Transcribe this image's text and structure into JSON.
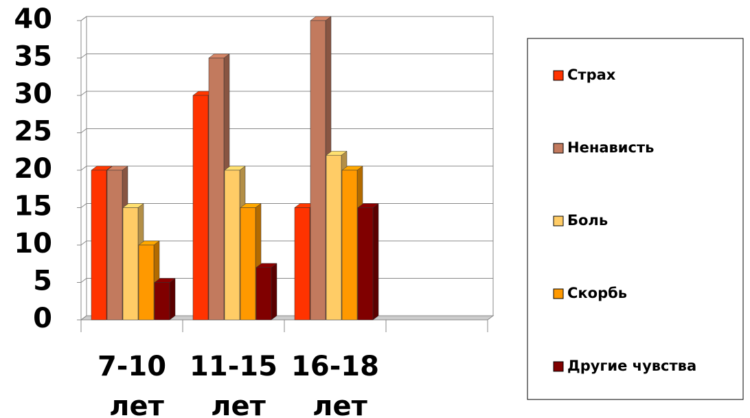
{
  "chart_data": {
    "type": "bar3d",
    "categories": [
      "7-10 лет",
      "11-15 лет",
      "16-18 лет",
      null
    ],
    "series": [
      {
        "name": "Страх",
        "color": "#ff3300",
        "values": [
          20,
          30,
          15,
          null
        ]
      },
      {
        "name": "Ненависть",
        "color": "#c27a5e",
        "values": [
          20,
          35,
          40,
          null
        ]
      },
      {
        "name": "Боль",
        "color": "#ffcc66",
        "values": [
          15,
          20,
          22,
          null
        ]
      },
      {
        "name": "Скорбь",
        "color": "#ff9900",
        "values": [
          10,
          15,
          20,
          null
        ]
      },
      {
        "name": "Другие чувства",
        "color": "#800000",
        "values": [
          5,
          7,
          15,
          null
        ]
      }
    ],
    "ylim": [
      0,
      40
    ],
    "yticks": [
      0,
      5,
      10,
      15,
      20,
      25,
      30,
      35,
      40
    ],
    "grid": true,
    "legend": "right"
  }
}
